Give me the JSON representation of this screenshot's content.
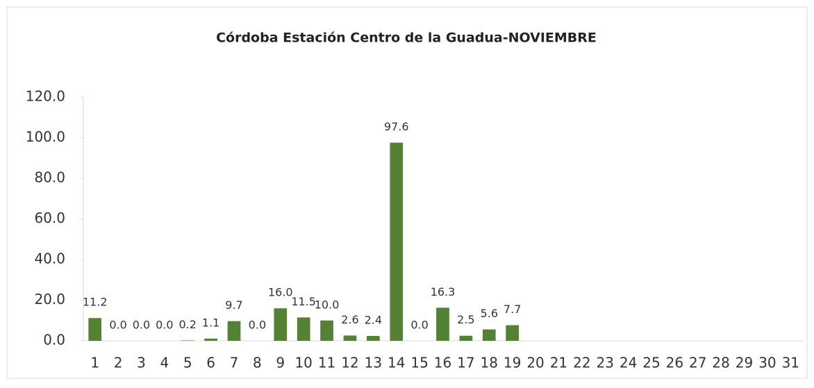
{
  "chart_data": {
    "type": "bar",
    "title": "Córdoba Estación Centro de la Guadua-NOVIEMBRE",
    "categories": [
      "1",
      "2",
      "3",
      "4",
      "5",
      "6",
      "7",
      "8",
      "9",
      "10",
      "11",
      "12",
      "13",
      "14",
      "15",
      "16",
      "17",
      "18",
      "19",
      "20",
      "21",
      "22",
      "23",
      "24",
      "25",
      "26",
      "27",
      "28",
      "29",
      "30",
      "31"
    ],
    "values": [
      11.2,
      0.0,
      0.0,
      0.0,
      0.2,
      1.1,
      9.7,
      0.0,
      16.0,
      11.5,
      10.0,
      2.6,
      2.4,
      97.6,
      0.0,
      16.3,
      2.5,
      5.6,
      7.7,
      null,
      null,
      null,
      null,
      null,
      null,
      null,
      null,
      null,
      null,
      null,
      null
    ],
    "value_labels": [
      "11.2",
      "0.0",
      "0.0",
      "0.0",
      "0.2",
      "1.1",
      "9.7",
      "0.0",
      "16.0",
      "11.5",
      "10.0",
      "2.6",
      "2.4",
      "97.6",
      "0.0",
      "16.3",
      "2.5",
      "5.6",
      "7.7",
      null,
      null,
      null,
      null,
      null,
      null,
      null,
      null,
      null,
      null,
      null,
      null
    ],
    "color": "#548235",
    "ylim": [
      0,
      120
    ],
    "yticks": [
      {
        "value": 0,
        "label": "0.0"
      },
      {
        "value": 20,
        "label": "20.0"
      },
      {
        "value": 40,
        "label": "40.0"
      },
      {
        "value": 60,
        "label": "60.0"
      },
      {
        "value": 80,
        "label": "80.0"
      },
      {
        "value": 100,
        "label": "100.0"
      },
      {
        "value": 120,
        "label": "120.0"
      }
    ]
  }
}
